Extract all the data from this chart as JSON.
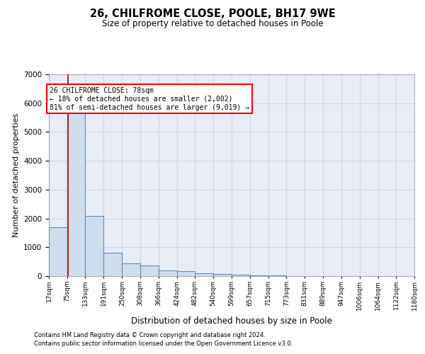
{
  "title": "26, CHILFROME CLOSE, POOLE, BH17 9WE",
  "subtitle": "Size of property relative to detached houses in Poole",
  "xlabel": "Distribution of detached houses by size in Poole",
  "ylabel": "Number of detached properties",
  "footnote1": "Contains HM Land Registry data © Crown copyright and database right 2024.",
  "footnote2": "Contains public sector information licensed under the Open Government Licence v3.0.",
  "annotation_line1": "26 CHILFROME CLOSE: 78sqm",
  "annotation_line2": "← 18% of detached houses are smaller (2,002)",
  "annotation_line3": "81% of semi-detached houses are larger (9,019) →",
  "bar_color": "#d0dded",
  "bar_edge_color": "#6090b8",
  "property_line_color": "#aa0000",
  "property_size": 78,
  "bin_edges": [
    17,
    75,
    133,
    191,
    250,
    308,
    366,
    424,
    482,
    540,
    599,
    657,
    715,
    773,
    831,
    889,
    947,
    1006,
    1064,
    1122,
    1180
  ],
  "bar_heights": [
    1700,
    5800,
    2100,
    800,
    430,
    370,
    200,
    170,
    110,
    75,
    50,
    35,
    18,
    8,
    4,
    4,
    4,
    4,
    3,
    3
  ],
  "tick_labels": [
    "17sqm",
    "75sqm",
    "133sqm",
    "191sqm",
    "250sqm",
    "308sqm",
    "366sqm",
    "424sqm",
    "482sqm",
    "540sqm",
    "599sqm",
    "657sqm",
    "715sqm",
    "773sqm",
    "831sqm",
    "889sqm",
    "947sqm",
    "1006sqm",
    "1064sqm",
    "1122sqm",
    "1180sqm"
  ],
  "ylim": [
    0,
    7000
  ],
  "yticks": [
    0,
    1000,
    2000,
    3000,
    4000,
    5000,
    6000,
    7000
  ],
  "plot_bg_color": "#e8ecf4",
  "background_color": "#ffffff",
  "grid_color": "#c8d0dc"
}
